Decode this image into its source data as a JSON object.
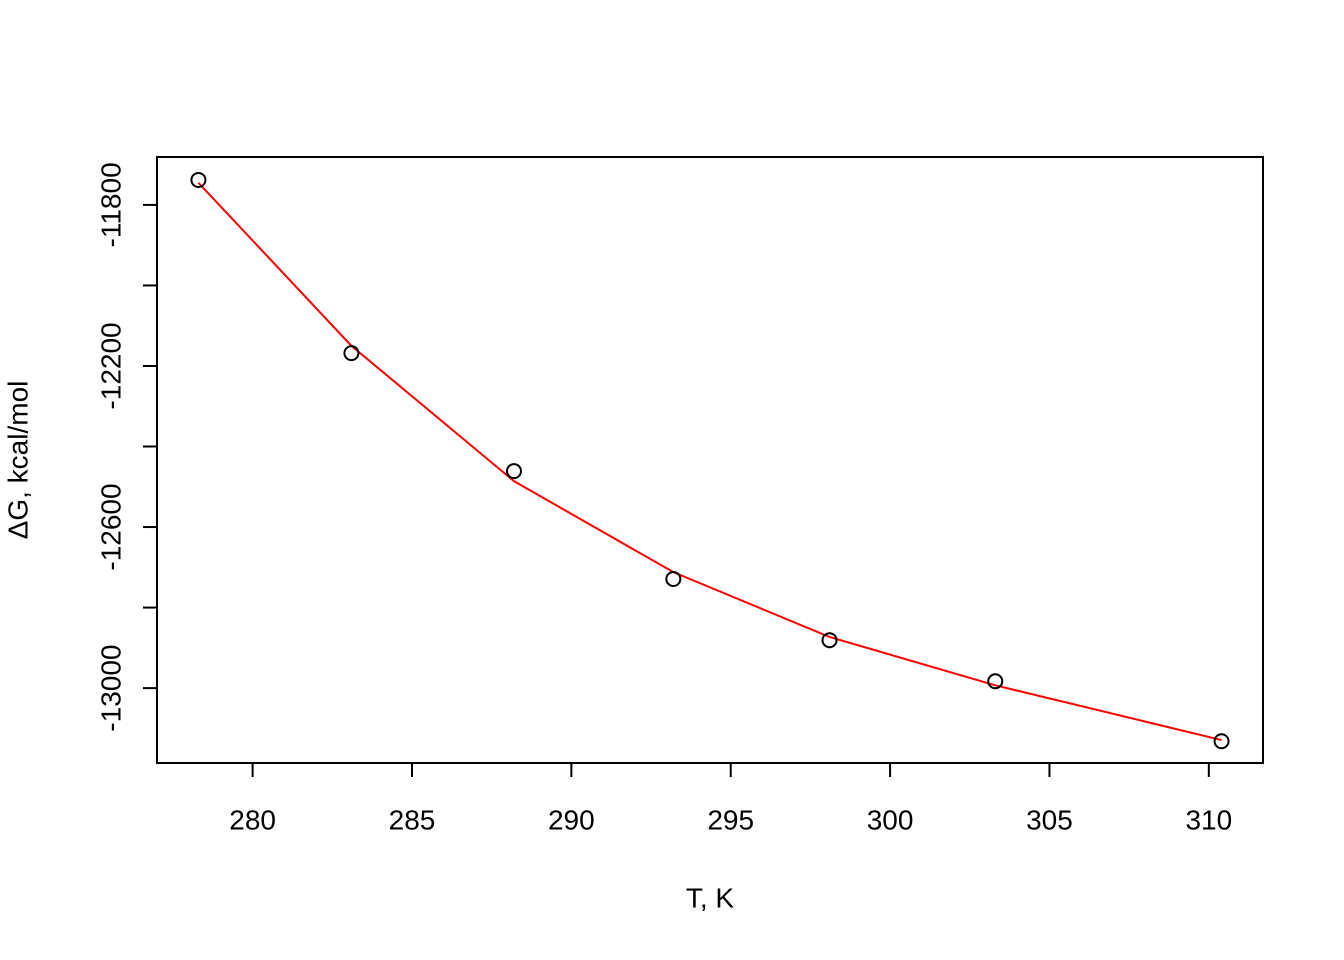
{
  "chart_data": {
    "type": "scatter",
    "xlabel": "T, K",
    "ylabel": "ΔG, kcal/mol",
    "x": [
      278.3,
      283.1,
      288.2,
      293.2,
      298.1,
      303.3,
      310.4
    ],
    "values": [
      -11738,
      -12168,
      -12461,
      -12729,
      -12881,
      -12983,
      -13132
    ],
    "point_color": "#000000",
    "fit": {
      "color": "#ff0000",
      "values": [
        -11745,
        -12150,
        -12486,
        -12712,
        -12873,
        -12993,
        -13129
      ]
    },
    "xlim": [
      277.0,
      311.7
    ],
    "ylim": [
      -13186,
      -11681
    ],
    "xticks": [
      280,
      285,
      290,
      295,
      300,
      305,
      310
    ],
    "yticks": [
      -11800,
      -12200,
      -12600,
      -13000
    ],
    "yminor_ticks": [
      -12000,
      -12400,
      -12800
    ]
  }
}
